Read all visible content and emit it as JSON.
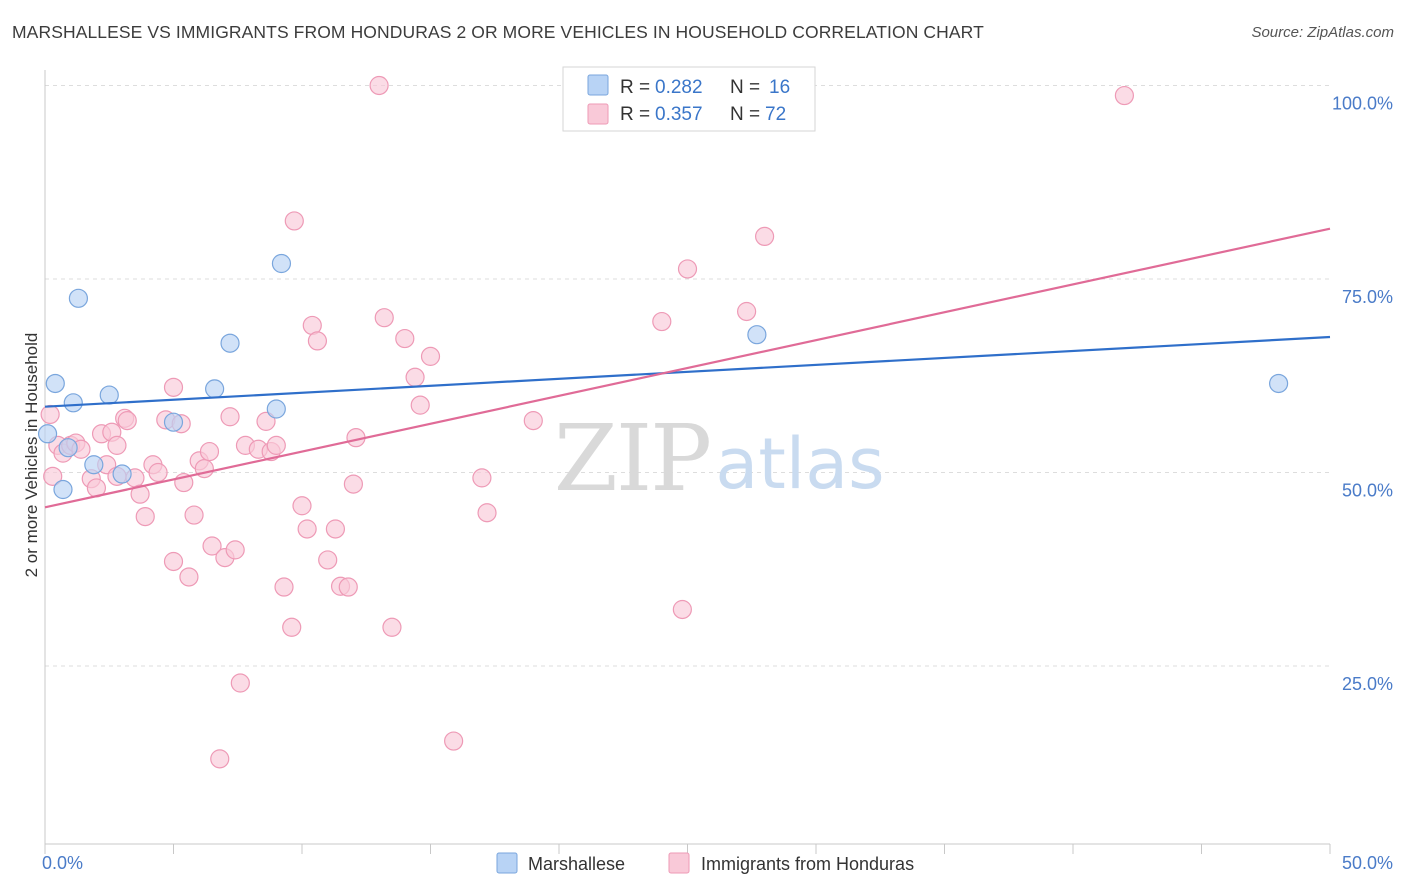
{
  "title": "MARSHALLESE VS IMMIGRANTS FROM HONDURAS 2 OR MORE VEHICLES IN HOUSEHOLD CORRELATION CHART",
  "source": "Source: ZipAtlas.com",
  "watermark": {
    "zip": "ZIP",
    "atlas": "atlas"
  },
  "colors": {
    "marshallese_fill": "#b8d3f5",
    "marshallese_stroke": "#7aa6dd",
    "marshallese_line": "#2f6fca",
    "honduras_fill": "#f9c9d8",
    "honduras_stroke": "#ee9ab6",
    "honduras_line": "#e06b97",
    "tick_label": "#4a7bc8",
    "grid": "#dddddd"
  },
  "legend": {
    "rows": [
      {
        "r_label": "R =",
        "r_value": "0.282",
        "n_label": "N =",
        "n_value": "16"
      },
      {
        "r_label": "R =",
        "r_value": "0.357",
        "n_label": "N =",
        "n_value": "72"
      }
    ]
  },
  "chart_data": {
    "type": "scatter",
    "title": "MARSHALLESE VS IMMIGRANTS FROM HONDURAS 2 OR MORE VEHICLES IN HOUSEHOLD CORRELATION CHART",
    "xlabel": "",
    "ylabel": "2 or more Vehicles in Household",
    "xlim": [
      0,
      50
    ],
    "ylim": [
      2,
      102
    ],
    "x_tick_labels": [
      "0.0%",
      "50.0%"
    ],
    "y_ticks": [
      25,
      50,
      75,
      100
    ],
    "y_tick_labels": [
      "25.0%",
      "50.0%",
      "75.0%",
      "100.0%"
    ],
    "grid": true,
    "legend_position": "top-center",
    "series": [
      {
        "name": "Marshallese",
        "points": [
          [
            0.1,
            55.0
          ],
          [
            0.4,
            61.5
          ],
          [
            0.7,
            47.8
          ],
          [
            1.1,
            59.0
          ],
          [
            1.3,
            72.5
          ],
          [
            0.9,
            53.2
          ],
          [
            1.9,
            51.0
          ],
          [
            2.5,
            60.0
          ],
          [
            3.0,
            49.8
          ],
          [
            5.0,
            56.5
          ],
          [
            6.6,
            60.8
          ],
          [
            7.2,
            66.7
          ],
          [
            9.0,
            58.2
          ],
          [
            9.2,
            77.0
          ],
          [
            27.7,
            67.8
          ],
          [
            48.0,
            61.5
          ]
        ],
        "trend": {
          "x": [
            0,
            50
          ],
          "y": [
            58.5,
            67.5
          ]
        }
      },
      {
        "name": "Immigrants from Honduras",
        "points": [
          [
            0.2,
            57.5
          ],
          [
            0.3,
            49.5
          ],
          [
            0.5,
            53.5
          ],
          [
            0.7,
            52.5
          ],
          [
            1.0,
            53.5
          ],
          [
            1.2,
            53.8
          ],
          [
            1.4,
            53.0
          ],
          [
            1.8,
            49.2
          ],
          [
            2.0,
            48.0
          ],
          [
            2.2,
            55.0
          ],
          [
            2.4,
            51.0
          ],
          [
            2.6,
            55.2
          ],
          [
            2.8,
            53.5
          ],
          [
            3.1,
            57.0
          ],
          [
            3.2,
            56.7
          ],
          [
            3.5,
            49.3
          ],
          [
            3.7,
            47.2
          ],
          [
            3.9,
            44.3
          ],
          [
            4.2,
            51.0
          ],
          [
            4.4,
            50.0
          ],
          [
            4.7,
            56.8
          ],
          [
            5.0,
            61.0
          ],
          [
            5.0,
            38.5
          ],
          [
            5.3,
            56.3
          ],
          [
            5.4,
            48.7
          ],
          [
            5.6,
            36.5
          ],
          [
            5.8,
            44.5
          ],
          [
            6.0,
            51.5
          ],
          [
            6.2,
            50.5
          ],
          [
            6.4,
            52.7
          ],
          [
            6.5,
            40.5
          ],
          [
            6.8,
            13.0
          ],
          [
            7.0,
            39.0
          ],
          [
            7.2,
            57.2
          ],
          [
            7.4,
            40.0
          ],
          [
            7.6,
            22.8
          ],
          [
            7.8,
            53.5
          ],
          [
            8.3,
            53.0
          ],
          [
            8.6,
            56.6
          ],
          [
            8.8,
            52.7
          ],
          [
            9.0,
            53.5
          ],
          [
            9.3,
            35.2
          ],
          [
            9.6,
            30.0
          ],
          [
            9.7,
            82.5
          ],
          [
            10.0,
            45.7
          ],
          [
            10.2,
            42.7
          ],
          [
            10.4,
            69.0
          ],
          [
            10.6,
            67.0
          ],
          [
            11.0,
            38.7
          ],
          [
            11.3,
            42.7
          ],
          [
            11.5,
            35.3
          ],
          [
            11.8,
            35.2
          ],
          [
            12.0,
            48.5
          ],
          [
            12.1,
            54.5
          ],
          [
            13.0,
            100.0
          ],
          [
            13.2,
            70.0
          ],
          [
            13.5,
            30.0
          ],
          [
            14.0,
            67.3
          ],
          [
            14.4,
            62.3
          ],
          [
            14.6,
            58.7
          ],
          [
            15.0,
            65.0
          ],
          [
            15.9,
            15.3
          ],
          [
            17.0,
            49.3
          ],
          [
            17.2,
            44.8
          ],
          [
            19.0,
            56.7
          ],
          [
            24.0,
            69.5
          ],
          [
            24.8,
            32.3
          ],
          [
            25.0,
            76.3
          ],
          [
            27.3,
            70.8
          ],
          [
            28.0,
            80.5
          ],
          [
            42.0,
            98.7
          ],
          [
            2.8,
            49.5
          ]
        ],
        "trend": {
          "x": [
            0,
            50
          ],
          "y": [
            45.5,
            81.5
          ]
        }
      }
    ]
  },
  "bottom_legend": [
    {
      "label": "Marshallese"
    },
    {
      "label": "Immigrants from Honduras"
    }
  ]
}
